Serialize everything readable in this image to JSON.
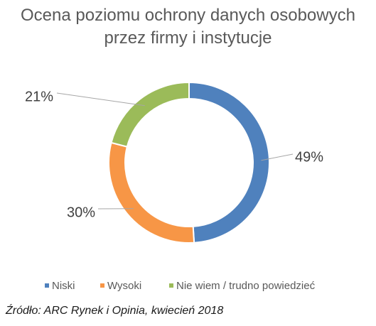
{
  "chart_data": {
    "type": "pie",
    "variant": "donut",
    "title_lines": [
      "Ocena poziomu ochrony danych osobowych",
      "przez firmy i instytucje"
    ],
    "categories": [
      "Niski",
      "Wysoki",
      "Nie wiem / trudno powiedzieć"
    ],
    "values": [
      49,
      30,
      21
    ],
    "value_labels": [
      "49%",
      "30%",
      "21%"
    ],
    "colors": [
      "#4f81bd",
      "#f79646",
      "#9bbb59"
    ],
    "legend_position": "bottom"
  },
  "source": "Źródło: ARC Rynek i Opinia, kwiecień 2018"
}
